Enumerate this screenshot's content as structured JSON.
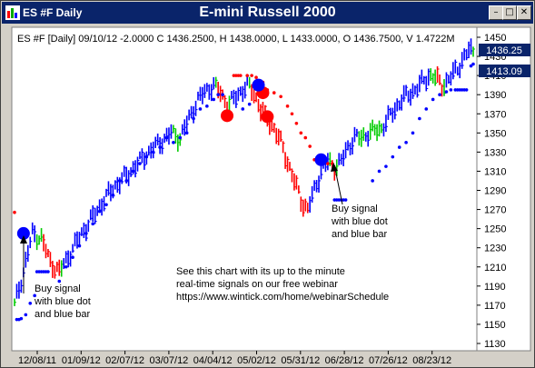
{
  "window": {
    "symbol_label": "ES #F Daily",
    "chart_title": "E-mini Russell 2000",
    "minimize_icon": "minimize-icon",
    "restore_icon": "restore-icon",
    "close_icon": "close-icon"
  },
  "header_text": "ES #F [Daily] 09/10/12  -2.0000 C 1436.2500, H 1438.0000, L 1433.0000, O 1436.7500, V 1.4722M",
  "price_tags": {
    "last": "1436.25",
    "level": "1413.09"
  },
  "annotations": {
    "note1": [
      "Buy signal",
      "with blue dot",
      "and blue bar"
    ],
    "note2": [
      "Buy signal",
      "with blue dot",
      "and blue bar"
    ],
    "promo": [
      "See this chart with its up to the minute",
      "real-time signals on our free webinar",
      "https://www.wintick.com/home/webinarSchedule"
    ]
  },
  "colors": {
    "up": "#0000ff",
    "down": "#ff0000",
    "neutral": "#00cc00",
    "background": "#ffffff",
    "title_bar": "#0a246a",
    "tag_bg": "#0a246a"
  },
  "chart_data": {
    "type": "ohlc-bar",
    "symbol": "ES #F",
    "interval": "Daily",
    "y_ticks": [
      1450,
      1430,
      1410,
      1390,
      1370,
      1350,
      1330,
      1310,
      1290,
      1270,
      1250,
      1230,
      1210,
      1190,
      1170,
      1150,
      1130
    ],
    "x_ticks": [
      "12/08/11",
      "01/09/12",
      "02/07/12",
      "03/07/12",
      "04/04/12",
      "05/02/12",
      "05/31/12",
      "06/28/12",
      "07/26/12",
      "08/23/12"
    ],
    "ylim": [
      1130,
      1450
    ],
    "grid": false,
    "path_points": [
      [
        0,
        1170
      ],
      [
        4,
        1205
      ],
      [
        8,
        1245
      ],
      [
        12,
        1240
      ],
      [
        16,
        1215
      ],
      [
        20,
        1205
      ],
      [
        25,
        1225
      ],
      [
        30,
        1245
      ],
      [
        35,
        1262
      ],
      [
        40,
        1280
      ],
      [
        45,
        1295
      ],
      [
        50,
        1305
      ],
      [
        55,
        1318
      ],
      [
        60,
        1330
      ],
      [
        65,
        1340
      ],
      [
        70,
        1350
      ],
      [
        74,
        1345
      ],
      [
        78,
        1365
      ],
      [
        82,
        1385
      ],
      [
        86,
        1395
      ],
      [
        89,
        1400
      ],
      [
        92,
        1392
      ],
      [
        95,
        1380
      ],
      [
        98,
        1385
      ],
      [
        101,
        1393
      ],
      [
        104,
        1400
      ],
      [
        107,
        1392
      ],
      [
        110,
        1375
      ],
      [
        113,
        1365
      ],
      [
        116,
        1355
      ],
      [
        119,
        1340
      ],
      [
        122,
        1320
      ],
      [
        125,
        1300
      ],
      [
        128,
        1280
      ],
      [
        131,
        1270
      ],
      [
        134,
        1290
      ],
      [
        137,
        1310
      ],
      [
        140,
        1320
      ],
      [
        143,
        1315
      ],
      [
        146,
        1320
      ],
      [
        149,
        1335
      ],
      [
        152,
        1345
      ],
      [
        155,
        1345
      ],
      [
        158,
        1350
      ],
      [
        161,
        1352
      ],
      [
        164,
        1355
      ],
      [
        167,
        1365
      ],
      [
        170,
        1375
      ],
      [
        173,
        1385
      ],
      [
        176,
        1390
      ],
      [
        179,
        1395
      ],
      [
        182,
        1402
      ],
      [
        185,
        1410
      ],
      [
        188,
        1408
      ],
      [
        191,
        1400
      ],
      [
        194,
        1405
      ],
      [
        197,
        1415
      ],
      [
        200,
        1425
      ],
      [
        203,
        1436
      ]
    ],
    "support_dots": [
      [
        1,
        1155
      ],
      [
        2,
        1155
      ],
      [
        3,
        1156
      ],
      [
        5,
        1160
      ],
      [
        7,
        1172
      ],
      [
        9,
        1180
      ],
      [
        10,
        1205
      ],
      [
        11,
        1205
      ],
      [
        12,
        1205
      ],
      [
        13,
        1205
      ],
      [
        14,
        1205
      ],
      [
        15,
        1205
      ],
      [
        20,
        1195
      ],
      [
        23,
        1210
      ],
      [
        26,
        1220
      ],
      [
        29,
        1232
      ],
      [
        32,
        1245
      ],
      [
        35,
        1255
      ],
      [
        38,
        1268
      ],
      [
        41,
        1275
      ],
      [
        44,
        1285
      ],
      [
        47,
        1300
      ],
      [
        50,
        1300
      ],
      [
        53,
        1310
      ],
      [
        56,
        1318
      ],
      [
        59,
        1325
      ],
      [
        62,
        1330
      ],
      [
        65,
        1335
      ],
      [
        68,
        1345
      ],
      [
        71,
        1340
      ],
      [
        74,
        1345
      ],
      [
        77,
        1350
      ],
      [
        80,
        1365
      ],
      [
        83,
        1375
      ],
      [
        86,
        1378
      ],
      [
        89,
        1385
      ],
      [
        91,
        1390
      ],
      [
        93,
        1390
      ],
      [
        102,
        1375
      ],
      [
        105,
        1380
      ],
      [
        143,
        1280
      ],
      [
        144,
        1280
      ],
      [
        145,
        1280
      ],
      [
        146,
        1280
      ],
      [
        147,
        1280
      ],
      [
        148,
        1280
      ],
      [
        160,
        1300
      ],
      [
        163,
        1310
      ],
      [
        166,
        1315
      ],
      [
        169,
        1325
      ],
      [
        172,
        1335
      ],
      [
        175,
        1340
      ],
      [
        178,
        1350
      ],
      [
        181,
        1365
      ],
      [
        184,
        1375
      ],
      [
        187,
        1385
      ],
      [
        190,
        1390
      ],
      [
        193,
        1393
      ],
      [
        195,
        1395
      ],
      [
        197,
        1395
      ],
      [
        198,
        1395
      ],
      [
        199,
        1395
      ],
      [
        200,
        1395
      ],
      [
        201,
        1395
      ],
      [
        202,
        1395
      ],
      [
        204,
        1420
      ],
      [
        205,
        1422
      ]
    ],
    "resistance_dots": [
      [
        0,
        1267
      ],
      [
        98,
        1410
      ],
      [
        99,
        1410
      ],
      [
        100,
        1410
      ],
      [
        101,
        1410
      ],
      [
        104,
        1410
      ],
      [
        106,
        1410
      ],
      [
        108,
        1408
      ],
      [
        111,
        1403
      ],
      [
        113,
        1395
      ],
      [
        116,
        1392
      ],
      [
        119,
        1388
      ],
      [
        122,
        1378
      ],
      [
        124,
        1370
      ],
      [
        126,
        1360
      ],
      [
        128,
        1350
      ],
      [
        130,
        1345
      ],
      [
        132,
        1336
      ],
      [
        134,
        1322
      ],
      [
        136,
        1318
      ],
      [
        138,
        1318
      ],
      [
        140,
        1318
      ],
      [
        142,
        1318
      ]
    ],
    "red_signals": [
      [
        95,
        1368
      ],
      [
        113,
        1367
      ],
      [
        111,
        1392
      ]
    ],
    "blue_signals": [
      [
        4,
        1245
      ],
      [
        109,
        1400
      ],
      [
        137,
        1322
      ]
    ]
  }
}
